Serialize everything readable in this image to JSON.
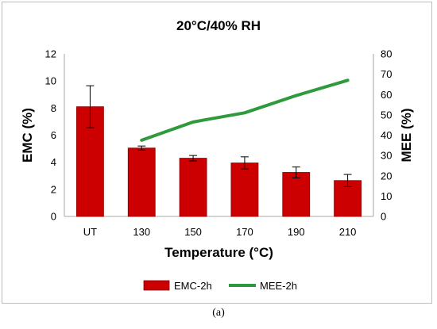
{
  "chart_data": {
    "type": "bar+line",
    "title": "20°C/40% RH",
    "categories": [
      "UT",
      "130",
      "150",
      "170",
      "190",
      "210"
    ],
    "xlabel": "Temperature (°C)",
    "ylabel_left": "EMC (%)",
    "ylabel_right": "MEE (%)",
    "ylim_left": [
      0,
      12
    ],
    "ylim_right": [
      0,
      80
    ],
    "yticks_left": [
      "0",
      "2",
      "4",
      "6",
      "8",
      "10",
      "12"
    ],
    "yticks_right": [
      "0",
      "10",
      "20",
      "30",
      "40",
      "50",
      "60",
      "70",
      "80"
    ],
    "grid": false,
    "legend_position": "bottom",
    "series": [
      {
        "name": "EMC-2h",
        "type": "bar",
        "axis": "left",
        "color": "#cc0000",
        "values": [
          8.1,
          5.05,
          4.3,
          3.95,
          3.25,
          2.65
        ],
        "errors": [
          1.55,
          0.15,
          0.2,
          0.45,
          0.4,
          0.45
        ]
      },
      {
        "name": "MEE-2h",
        "type": "line",
        "axis": "right",
        "color": "#2e9a3c",
        "values": [
          null,
          37.5,
          46.5,
          51,
          59.5,
          67
        ]
      }
    ]
  },
  "caption": "(a)"
}
